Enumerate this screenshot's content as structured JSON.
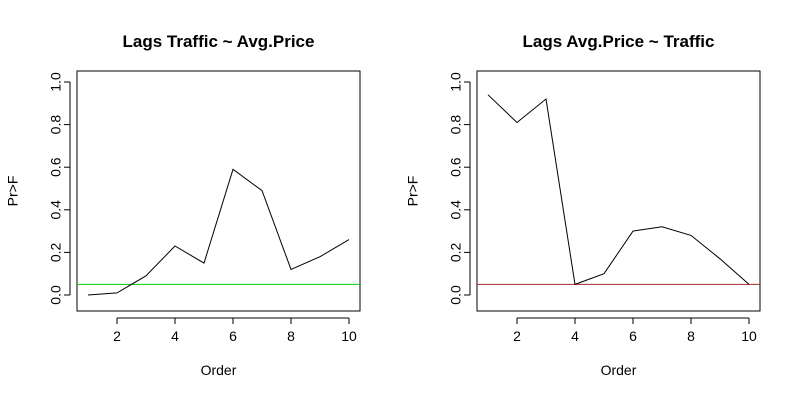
{
  "chart_data": [
    {
      "type": "line",
      "title": "Lags Traffic ~ Avg.Price",
      "xlabel": "Order",
      "ylabel": "Pr>F",
      "xlim": [
        1,
        10
      ],
      "ylim": [
        0,
        1
      ],
      "x_ticks": [
        2,
        4,
        6,
        8,
        10
      ],
      "y_ticks": [
        0.0,
        0.2,
        0.4,
        0.6,
        0.8,
        1.0
      ],
      "y_tick_labels": [
        "0.0",
        "0.2",
        "0.4",
        "0.6",
        "0.8",
        "1.0"
      ],
      "grid": false,
      "x": [
        1,
        2,
        3,
        4,
        5,
        6,
        7,
        8,
        9,
        10
      ],
      "values": [
        0.0,
        0.01,
        0.09,
        0.23,
        0.15,
        0.59,
        0.49,
        0.12,
        0.18,
        0.26
      ],
      "line_color": "#000000",
      "reference_line": {
        "y": 0.05,
        "color": "#00cc00"
      }
    },
    {
      "type": "line",
      "title": "Lags Avg.Price ~ Traffic",
      "xlabel": "Order",
      "ylabel": "Pr>F",
      "xlim": [
        1,
        10
      ],
      "ylim": [
        0,
        1
      ],
      "x_ticks": [
        2,
        4,
        6,
        8,
        10
      ],
      "y_ticks": [
        0.0,
        0.2,
        0.4,
        0.6,
        0.8,
        1.0
      ],
      "y_tick_labels": [
        "0.0",
        "0.2",
        "0.4",
        "0.6",
        "0.8",
        "1.0"
      ],
      "grid": false,
      "x": [
        1,
        2,
        3,
        4,
        5,
        6,
        7,
        8,
        9,
        10
      ],
      "values": [
        0.94,
        0.81,
        0.92,
        0.05,
        0.1,
        0.3,
        0.32,
        0.28,
        0.17,
        0.05
      ],
      "line_color": "#000000",
      "reference_line": {
        "y": 0.05,
        "color": "#a52a2a"
      }
    }
  ]
}
